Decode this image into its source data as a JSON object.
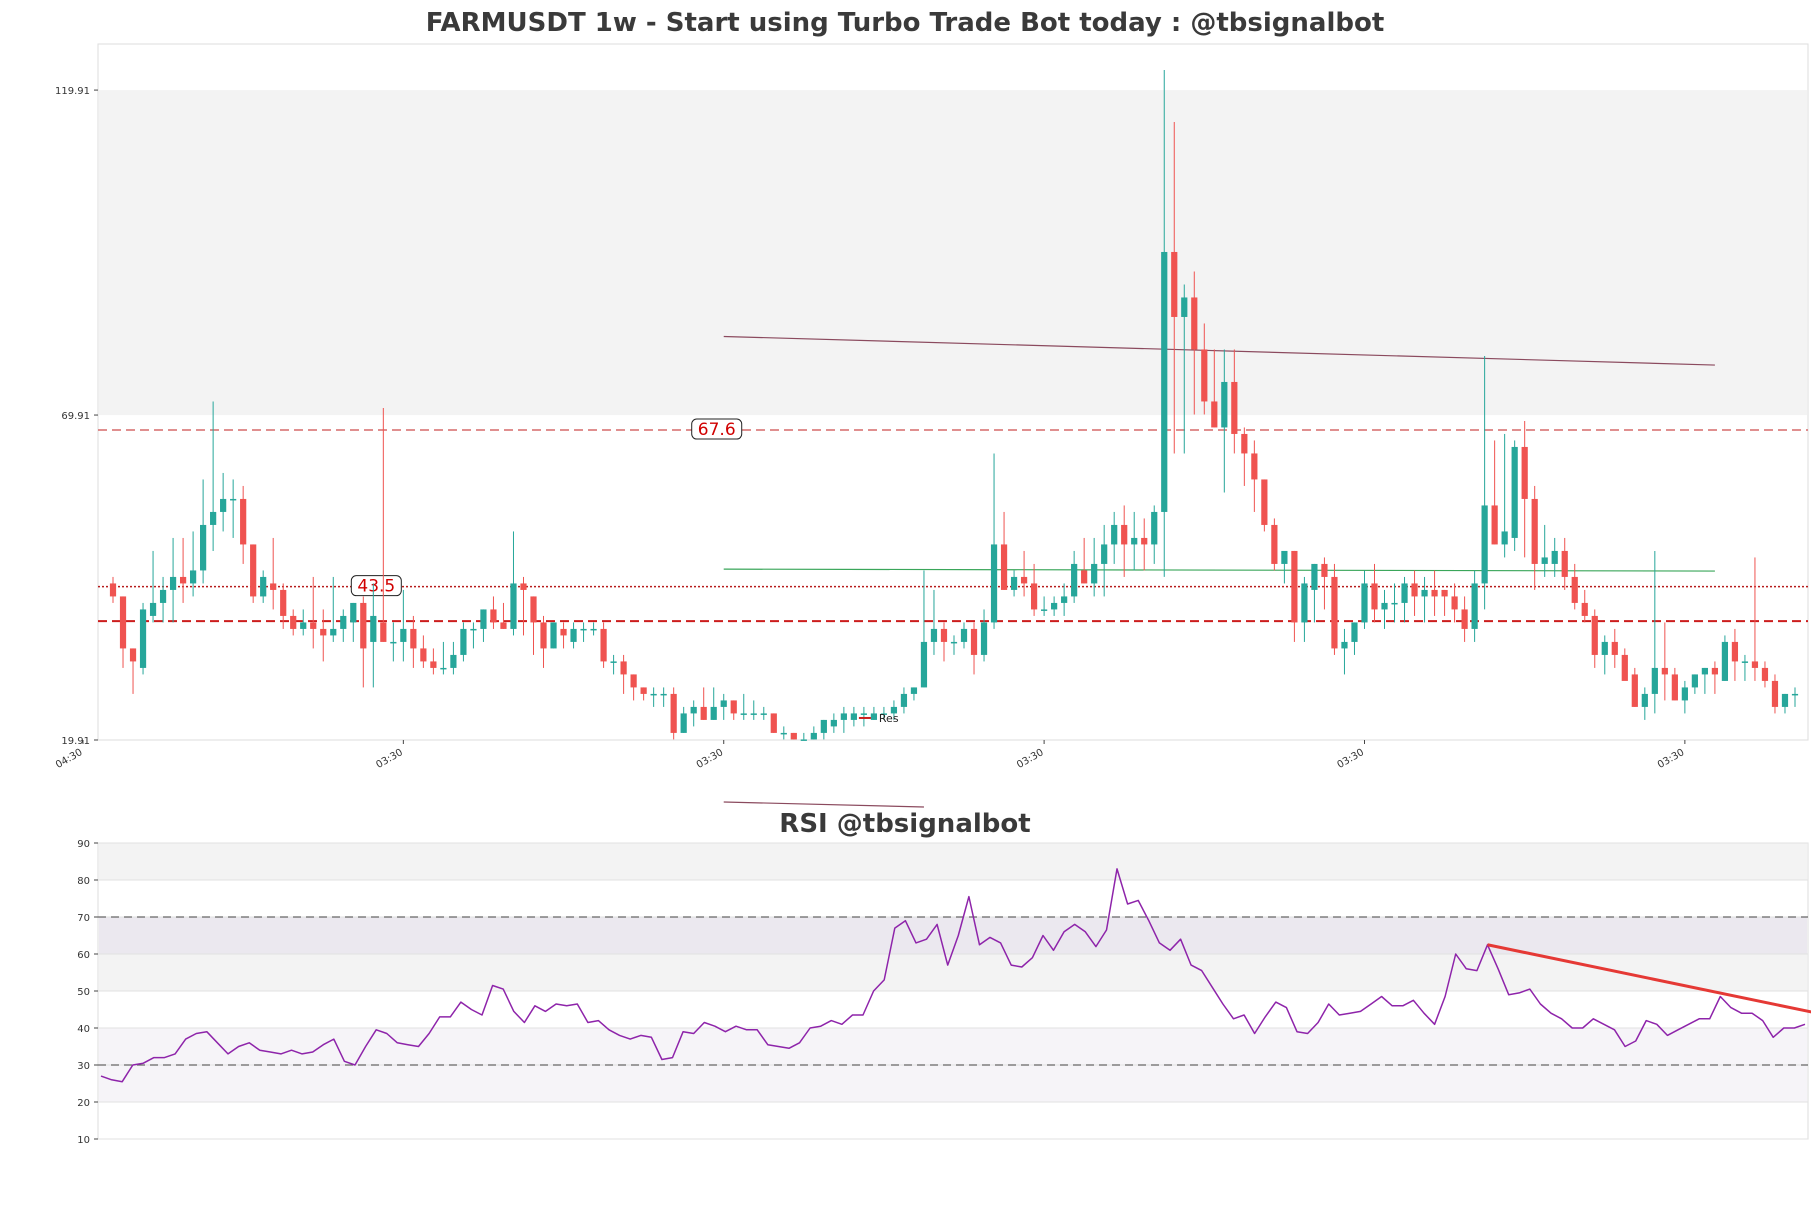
{
  "chart_data": [
    {
      "type": "candlestick",
      "title": "FARMUSDT 1w - Start using Turbo Trade Bot today : @tbsignalbot",
      "ylim": [
        19.91,
        127
      ],
      "yticks": [
        {
          "value": 19.91,
          "label": "19.91"
        },
        {
          "value": 69.91,
          "label": "69.91"
        },
        {
          "value": 119.91,
          "label": "119.91"
        }
      ],
      "xticks": [
        {
          "index": -3,
          "label": "04:30"
        },
        {
          "index": 29,
          "label": "03:30"
        },
        {
          "index": 61,
          "label": "03:30"
        },
        {
          "index": 93,
          "label": "03:30"
        },
        {
          "index": 125,
          "label": "03:30"
        },
        {
          "index": 157,
          "label": "03:30"
        }
      ],
      "shaded_band": [
        69.91,
        119.91
      ],
      "levels": [
        {
          "value": 67.6,
          "label": "67.6",
          "style": "dashed",
          "label_index": 60
        },
        {
          "value": 43.5,
          "label": "43.5",
          "style": "dotted",
          "label_index": 26
        },
        {
          "value": 38.2,
          "label": "",
          "style": "dashed",
          "label_index": null
        }
      ],
      "trendlines": [
        {
          "color": "#8b4a5e",
          "from": [
            61,
            82.0
          ],
          "to": [
            160,
            77.6
          ]
        },
        {
          "color": "#3aa65a",
          "from": [
            61,
            46.2
          ],
          "to": [
            160,
            45.9
          ]
        }
      ],
      "legend": {
        "label": "Res",
        "position": "lower-middle"
      },
      "ohlc": [
        [
          44,
          45,
          41,
          42
        ],
        [
          42,
          42,
          31,
          34
        ],
        [
          34,
          34,
          27,
          32
        ],
        [
          31,
          41,
          30,
          40
        ],
        [
          39,
          49,
          38,
          41
        ],
        [
          41,
          45,
          38,
          43
        ],
        [
          43,
          51,
          38,
          45
        ],
        [
          45,
          51,
          41,
          44
        ],
        [
          44,
          52,
          42,
          46
        ],
        [
          46,
          60,
          44,
          53
        ],
        [
          53,
          72,
          49,
          55
        ],
        [
          55,
          61,
          52,
          57
        ],
        [
          57,
          60,
          51,
          57
        ],
        [
          57,
          59,
          47,
          50
        ],
        [
          50,
          50,
          41,
          42
        ],
        [
          42,
          46,
          41,
          45
        ],
        [
          44,
          51,
          40,
          43
        ],
        [
          43,
          44,
          37,
          39
        ],
        [
          39,
          40,
          36,
          37
        ],
        [
          37,
          40,
          36,
          38
        ],
        [
          38,
          45,
          34,
          37
        ],
        [
          37,
          40,
          32,
          36
        ],
        [
          36,
          45,
          35,
          37
        ],
        [
          37,
          40,
          35,
          39
        ],
        [
          38,
          41,
          35,
          41
        ],
        [
          41,
          42,
          28,
          34
        ],
        [
          35,
          44,
          28,
          39
        ],
        [
          38,
          71,
          35,
          35
        ],
        [
          35,
          38,
          32,
          35
        ],
        [
          35,
          43,
          32,
          37
        ],
        [
          37,
          39,
          31,
          34
        ],
        [
          34,
          36,
          31,
          32
        ],
        [
          32,
          34,
          30,
          31
        ],
        [
          31,
          35,
          30,
          31
        ],
        [
          31,
          35,
          30,
          33
        ],
        [
          33,
          38,
          32,
          37
        ],
        [
          37,
          38,
          34,
          37
        ],
        [
          37,
          40,
          35,
          40
        ],
        [
          40,
          42,
          37,
          38
        ],
        [
          38,
          41,
          37,
          37
        ],
        [
          37,
          52,
          36,
          44
        ],
        [
          44,
          45,
          36,
          43
        ],
        [
          42,
          42,
          33,
          38
        ],
        [
          38,
          39,
          31,
          34
        ],
        [
          34,
          38,
          34,
          38
        ],
        [
          37,
          38,
          34,
          36
        ],
        [
          35,
          38,
          34,
          37
        ],
        [
          37,
          38,
          35,
          37
        ],
        [
          37,
          38,
          36,
          37
        ],
        [
          37,
          38,
          31,
          32
        ],
        [
          32,
          33,
          30,
          32
        ],
        [
          32,
          33,
          27,
          30
        ],
        [
          30,
          30,
          26,
          28
        ],
        [
          28,
          28,
          26,
          27
        ],
        [
          27,
          28,
          25,
          27
        ],
        [
          27,
          28,
          25,
          27
        ],
        [
          27,
          28,
          20,
          21
        ],
        [
          21,
          25,
          21,
          24
        ],
        [
          24,
          26,
          22,
          25
        ],
        [
          25,
          28,
          23,
          23
        ],
        [
          23,
          28,
          23,
          25
        ],
        [
          25,
          27,
          23,
          26
        ],
        [
          26,
          26,
          23,
          24
        ],
        [
          24,
          27,
          23,
          24
        ],
        [
          24,
          26,
          23,
          24
        ],
        [
          24,
          25,
          23,
          24
        ],
        [
          24,
          24,
          21,
          21
        ],
        [
          21,
          22,
          20,
          21
        ],
        [
          21,
          21,
          20,
          20
        ],
        [
          20,
          21,
          20,
          20
        ],
        [
          20,
          22,
          20,
          21
        ],
        [
          21,
          23,
          20,
          23
        ],
        [
          22,
          24,
          21,
          23
        ],
        [
          23,
          25,
          21,
          24
        ],
        [
          23,
          25,
          22,
          24
        ],
        [
          24,
          25,
          22,
          24
        ],
        [
          23,
          25,
          23,
          24
        ],
        [
          24,
          25,
          23,
          24
        ],
        [
          24,
          26,
          23,
          25
        ],
        [
          25,
          28,
          24,
          27
        ],
        [
          27,
          28,
          26,
          28
        ],
        [
          28,
          46,
          28,
          35
        ],
        [
          35,
          43,
          33,
          37
        ],
        [
          37,
          38,
          32,
          35
        ],
        [
          35,
          36,
          33,
          35
        ],
        [
          35,
          38,
          34,
          37
        ],
        [
          37,
          38,
          30,
          33
        ],
        [
          33,
          40,
          32,
          38
        ],
        [
          38,
          64,
          37,
          50
        ],
        [
          50,
          55,
          43,
          43
        ],
        [
          43,
          46,
          42,
          45
        ],
        [
          45,
          49,
          42,
          44
        ],
        [
          44,
          47,
          39,
          40
        ],
        [
          40,
          42,
          39,
          40
        ],
        [
          40,
          42,
          39,
          41
        ],
        [
          41,
          44,
          39,
          42
        ],
        [
          42,
          49,
          41,
          47
        ],
        [
          46,
          51,
          44,
          44
        ],
        [
          44,
          51,
          42,
          47
        ],
        [
          47,
          53,
          42,
          50
        ],
        [
          50,
          55,
          47,
          53
        ],
        [
          53,
          56,
          45,
          50
        ],
        [
          50,
          55,
          46,
          51
        ],
        [
          51,
          54,
          46,
          50
        ],
        [
          50,
          56,
          47,
          55
        ],
        [
          55,
          123,
          45,
          95
        ],
        [
          95,
          115,
          64,
          85
        ],
        [
          85,
          90,
          64,
          88
        ],
        [
          88,
          92,
          70,
          80
        ],
        [
          80,
          84,
          70,
          72
        ],
        [
          72,
          80,
          68,
          68
        ],
        [
          68,
          80,
          58,
          75
        ],
        [
          75,
          80,
          64,
          67
        ],
        [
          67,
          68,
          59,
          64
        ],
        [
          64,
          66,
          55,
          60
        ],
        [
          60,
          60,
          52,
          53
        ],
        [
          53,
          54,
          46,
          47
        ],
        [
          47,
          48,
          44,
          49
        ],
        [
          49,
          49,
          35,
          38
        ],
        [
          38,
          45,
          35,
          44
        ],
        [
          43,
          47,
          38,
          47
        ],
        [
          47,
          48,
          40,
          45
        ],
        [
          45,
          47,
          33,
          34
        ],
        [
          34,
          37,
          30,
          35
        ],
        [
          35,
          38,
          33,
          38
        ],
        [
          38,
          46,
          37,
          44
        ],
        [
          44,
          47,
          38,
          40
        ],
        [
          40,
          43,
          37,
          41
        ],
        [
          41,
          44,
          38,
          41
        ],
        [
          41,
          45,
          38,
          44
        ],
        [
          44,
          46,
          39,
          42
        ],
        [
          42,
          45,
          38,
          43
        ],
        [
          43,
          46,
          39,
          42
        ],
        [
          43,
          43,
          39,
          42
        ],
        [
          42,
          44,
          38,
          40
        ],
        [
          40,
          42,
          35,
          37
        ],
        [
          37,
          46,
          35,
          44
        ],
        [
          44,
          79,
          40,
          56
        ],
        [
          56,
          66,
          50,
          50
        ],
        [
          50,
          67,
          48,
          52
        ],
        [
          51,
          66,
          49,
          65
        ],
        [
          65,
          69,
          48,
          57
        ],
        [
          57,
          59,
          43,
          47
        ],
        [
          47,
          53,
          45,
          48
        ],
        [
          47,
          51,
          45,
          49
        ],
        [
          49,
          51,
          43,
          45
        ],
        [
          45,
          47,
          40,
          41
        ],
        [
          41,
          43,
          38,
          39
        ],
        [
          39,
          40,
          31,
          33
        ],
        [
          33,
          36,
          30,
          35
        ],
        [
          35,
          37,
          31,
          33
        ],
        [
          33,
          34,
          30,
          29
        ],
        [
          30,
          31,
          25,
          25
        ],
        [
          25,
          28,
          23,
          27
        ],
        [
          27,
          49,
          24,
          31
        ],
        [
          31,
          38,
          26,
          30
        ],
        [
          30,
          31,
          26,
          26
        ],
        [
          26,
          29,
          24,
          28
        ],
        [
          28,
          30,
          27,
          30
        ],
        [
          30,
          31,
          27,
          31
        ],
        [
          31,
          32,
          27,
          30
        ],
        [
          29,
          36,
          29,
          35
        ],
        [
          35,
          37,
          29,
          32
        ],
        [
          32,
          33,
          29,
          32
        ],
        [
          32,
          48,
          29,
          31
        ],
        [
          31,
          32,
          28,
          29
        ],
        [
          29,
          30,
          24,
          25
        ],
        [
          25,
          27,
          24,
          27
        ],
        [
          27,
          28,
          25,
          27
        ]
      ]
    },
    {
      "type": "line",
      "title": "RSI @tbsignalbot",
      "ylim": [
        10,
        90
      ],
      "yticks": [
        10,
        20,
        30,
        40,
        50,
        60,
        70,
        80,
        90
      ],
      "hlines": [
        30,
        70
      ],
      "bands": [
        [
          20,
          40
        ],
        [
          50,
          60
        ],
        [
          60,
          70
        ],
        [
          80,
          90
        ]
      ],
      "trendline": {
        "color": "#e53935",
        "from": [
          131,
          62.5
        ],
        "to": [
          163,
          43.5
        ]
      },
      "series": [
        {
          "color": "#8e24aa",
          "values": [
            27,
            26,
            25.5,
            30,
            30.5,
            32,
            32,
            33,
            37,
            38.5,
            39,
            36,
            33,
            35,
            36,
            34,
            33.5,
            33,
            34,
            33,
            33.5,
            35.5,
            37,
            31,
            30,
            35,
            39.5,
            38.5,
            36,
            35.5,
            35,
            38.5,
            43,
            43,
            47,
            45,
            43.5,
            51.5,
            50.5,
            44.5,
            41.5,
            46,
            44.5,
            46.5,
            46,
            46.5,
            41.5,
            42,
            39.5,
            38,
            37,
            38,
            37.5,
            31.5,
            32,
            39,
            38.5,
            41.5,
            40.5,
            39,
            40.5,
            39.5,
            39.5,
            35.5,
            35,
            34.5,
            36,
            40,
            40.5,
            42,
            41,
            43.5,
            43.5,
            50,
            53,
            67,
            69,
            63,
            64,
            68,
            57,
            65,
            75.5,
            62.5,
            64.5,
            63,
            57,
            56.5,
            59,
            65,
            61,
            66,
            68,
            66,
            62,
            66.5,
            83,
            73.5,
            74.5,
            69,
            63,
            61,
            64,
            57,
            55.5,
            51,
            46.5,
            42.5,
            43.5,
            38.5,
            43,
            47,
            45.5,
            39,
            38.5,
            41.5,
            46.5,
            43.5,
            44,
            44.5,
            46.5,
            48.5,
            46,
            46,
            47.5,
            44,
            41,
            48.5,
            60,
            56,
            55.5,
            62.5,
            56,
            49,
            49.5,
            50.5,
            46.5,
            44,
            42.5,
            40,
            40,
            42.5,
            41,
            39.5,
            35,
            36.5,
            42,
            41,
            38,
            39.5,
            41,
            42.5,
            42.5,
            48.5,
            45.5,
            44,
            44,
            42,
            37.5,
            40,
            40,
            41
          ]
        }
      ]
    }
  ]
}
